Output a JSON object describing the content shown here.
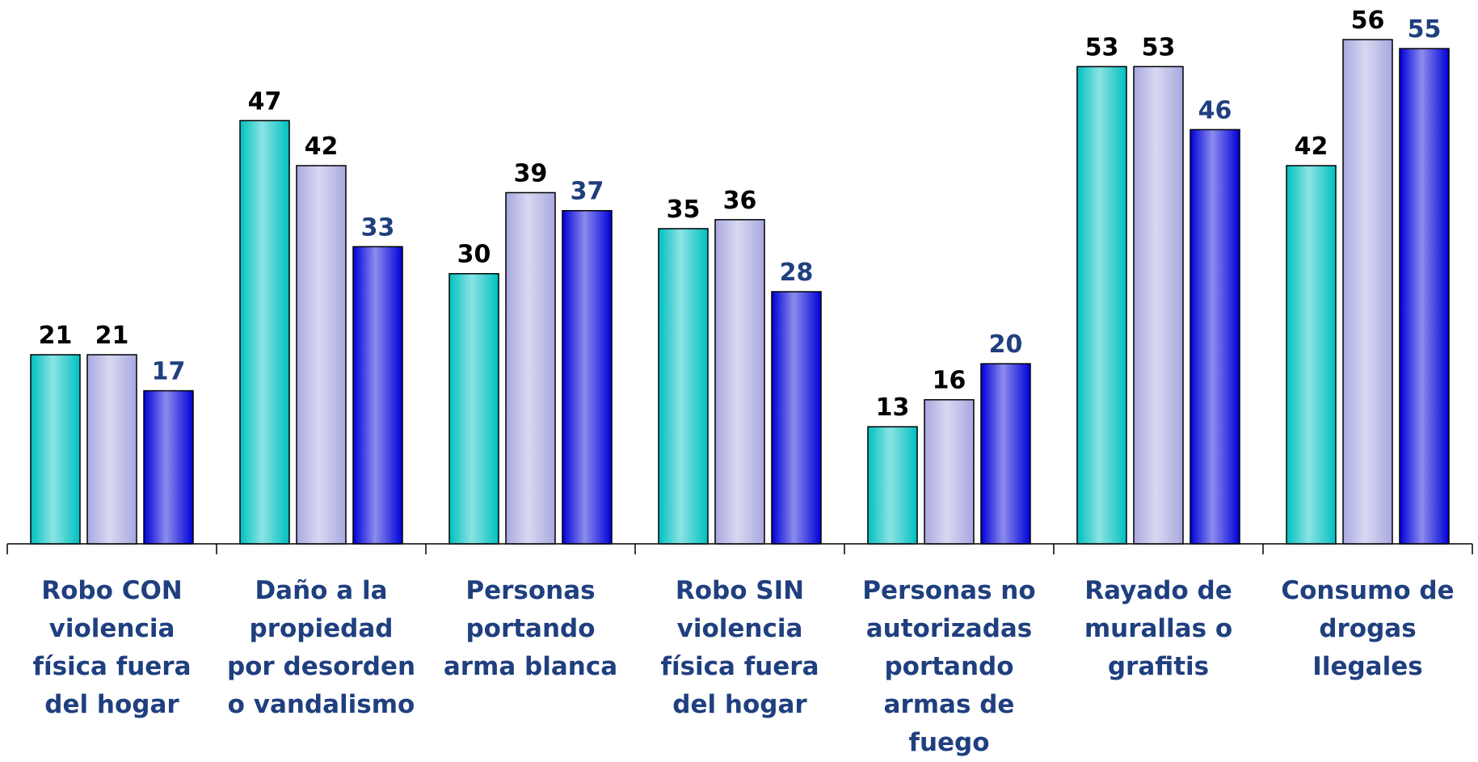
{
  "chart_data": {
    "type": "bar",
    "categories": [
      "Robo CON violencia física fuera del hogar",
      "Daño a la propiedad por desorden o vandalismo",
      "Personas portando arma blanca",
      "Robo SIN violencia física fuera del hogar",
      "Personas no autorizadas portando armas de fuego",
      "Rayado de murallas o grafitis",
      "Consumo de drogas Ilegales"
    ],
    "series": [
      {
        "color": "#00c0c0",
        "label_color": "#000000",
        "values": [
          21,
          47,
          30,
          35,
          13,
          53,
          42
        ]
      },
      {
        "color": "#a8a8e0",
        "label_color": "#000000",
        "values": [
          21,
          42,
          39,
          36,
          16,
          53,
          56
        ]
      },
      {
        "color": "#0000d8",
        "label_color": "#1f3f7f",
        "values": [
          17,
          33,
          37,
          28,
          20,
          46,
          55
        ]
      }
    ],
    "ylim": [
      0,
      56
    ]
  }
}
